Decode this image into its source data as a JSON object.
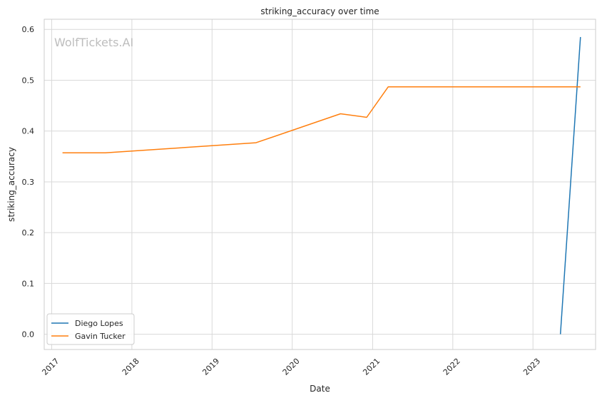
{
  "chart_data": {
    "type": "line",
    "title": "striking_accuracy over time",
    "xlabel": "Date",
    "ylabel": "striking_accuracy",
    "watermark": "WolfTickets.AI",
    "x_ticks": [
      "2017",
      "2018",
      "2019",
      "2020",
      "2021",
      "2022",
      "2023"
    ],
    "y_ticks": [
      "0.0",
      "0.1",
      "0.2",
      "0.3",
      "0.4",
      "0.5",
      "0.6"
    ],
    "xlim": [
      "2016-11-28",
      "2023-10-13"
    ],
    "ylim": [
      -0.03,
      0.62
    ],
    "grid": true,
    "legend_position": "lower-left",
    "series": [
      {
        "name": "Diego Lopes",
        "color": "#1f77b4",
        "points": [
          {
            "x": "2023-05-06",
            "y": 0.0
          },
          {
            "x": "2023-08-05",
            "y": 0.585
          }
        ]
      },
      {
        "name": "Gavin Tucker",
        "color": "#ff7f0e",
        "points": [
          {
            "x": "2017-02-19",
            "y": 0.357
          },
          {
            "x": "2017-09-02",
            "y": 0.357
          },
          {
            "x": "2019-07-20",
            "y": 0.377
          },
          {
            "x": "2020-08-08",
            "y": 0.434
          },
          {
            "x": "2020-12-05",
            "y": 0.427
          },
          {
            "x": "2021-03-13",
            "y": 0.487
          },
          {
            "x": "2023-08-05",
            "y": 0.487
          }
        ]
      }
    ]
  }
}
